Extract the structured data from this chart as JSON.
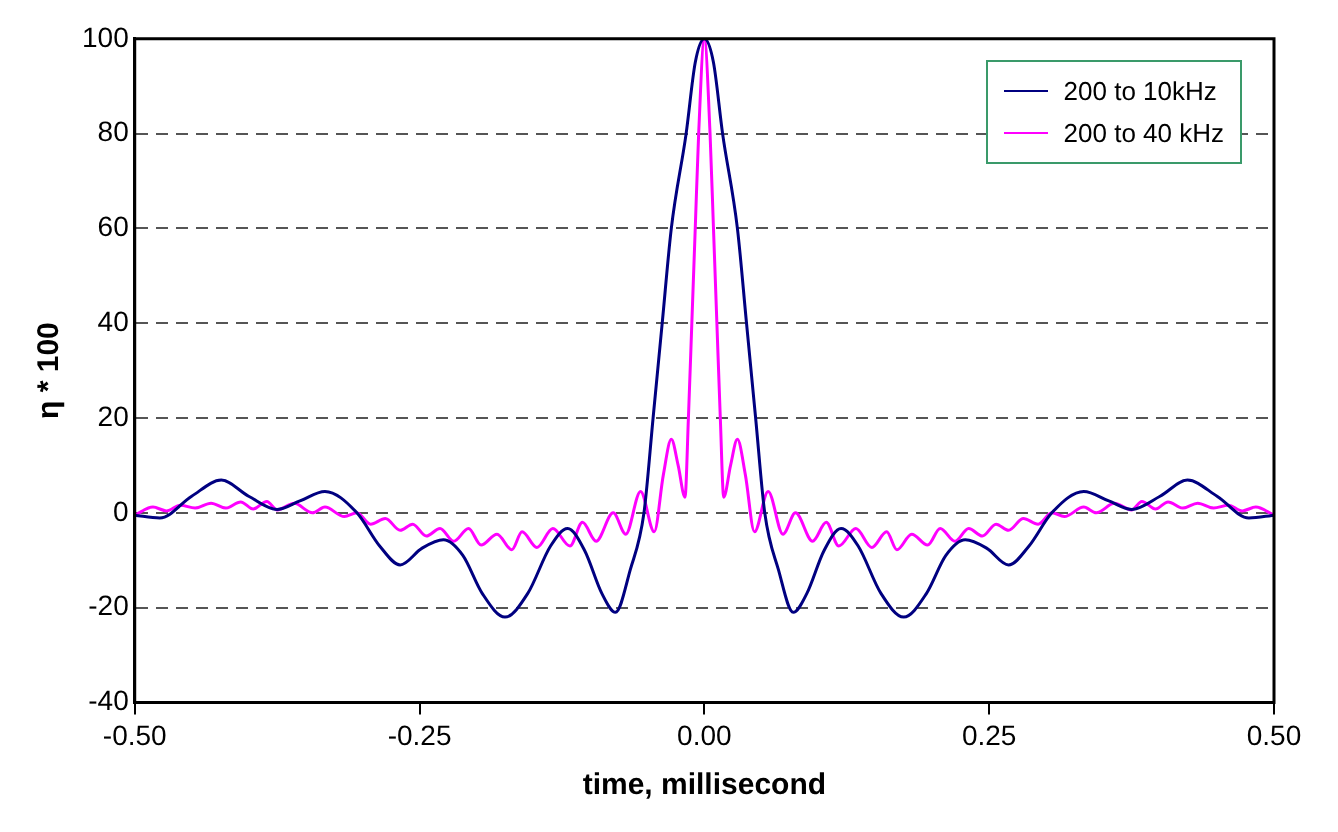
{
  "chart_data": {
    "type": "line",
    "xlabel": "time, millisecond",
    "ylabel": "η * 100",
    "xlim": [
      -0.5,
      0.5
    ],
    "xticks": [
      {
        "value": -0.5,
        "label": "-0.50"
      },
      {
        "value": -0.25,
        "label": "-0.25"
      },
      {
        "value": 0,
        "label": "0.00"
      },
      {
        "value": 0.25,
        "label": "0.25"
      },
      {
        "value": 0.5,
        "label": "0.50"
      }
    ],
    "ylim": [
      -40,
      100
    ],
    "yticks": [
      -40,
      -20,
      0,
      20,
      40,
      60,
      80,
      100
    ],
    "grid": "y",
    "legend": "top right",
    "marker": "none",
    "line_style": "solid",
    "series": [
      {
        "name": "200 to 10kHz",
        "color": "#000080",
        "x": [
          -0.5,
          -0.478,
          -0.45,
          -0.424,
          -0.4,
          -0.375,
          -0.355,
          -0.333,
          -0.305,
          -0.285,
          -0.267,
          -0.248,
          -0.229,
          -0.212,
          -0.195,
          -0.175,
          -0.155,
          -0.135,
          -0.12,
          -0.105,
          -0.09,
          -0.078,
          -0.065,
          -0.053,
          -0.045,
          -0.037,
          -0.029,
          -0.016,
          -0.008,
          0,
          0.008,
          0.016,
          0.029,
          0.037,
          0.045,
          0.053,
          0.065,
          0.078,
          0.09,
          0.105,
          0.12,
          0.135,
          0.155,
          0.175,
          0.195,
          0.212,
          0.229,
          0.248,
          0.267,
          0.285,
          0.305,
          0.333,
          0.355,
          0.375,
          0.4,
          0.424,
          0.45,
          0.478,
          0.5
        ],
        "values": [
          -0.5,
          -1.1,
          3.5,
          6.9,
          3.5,
          0.7,
          2.5,
          4.5,
          0,
          -7,
          -11,
          -7.5,
          -5.7,
          -9,
          -17,
          -22,
          -17,
          -7,
          -3.3,
          -8,
          -17,
          -21,
          -12,
          0,
          20,
          40,
          60,
          80,
          95,
          100,
          95,
          80,
          60,
          40,
          20,
          0,
          -12,
          -21,
          -17,
          -8,
          -3.3,
          -7,
          -17,
          -22,
          -17,
          -9,
          -5.7,
          -7.5,
          -11,
          -7,
          0,
          4.5,
          2.5,
          0.7,
          3.5,
          6.9,
          3.5,
          -1.1,
          -0.5
        ]
      },
      {
        "name": "200 to 40 kHz",
        "color": "#ff00ff",
        "x": [
          -0.5,
          -0.484,
          -0.472,
          -0.46,
          -0.447,
          -0.433,
          -0.42,
          -0.407,
          -0.396,
          -0.384,
          -0.375,
          -0.36,
          -0.344,
          -0.333,
          -0.316,
          -0.305,
          -0.293,
          -0.28,
          -0.267,
          -0.256,
          -0.244,
          -0.232,
          -0.22,
          -0.207,
          -0.196,
          -0.182,
          -0.169,
          -0.16,
          -0.147,
          -0.133,
          -0.118,
          -0.107,
          -0.095,
          -0.08,
          -0.069,
          -0.056,
          -0.044,
          -0.036,
          -0.029,
          -0.023,
          -0.017,
          -0.014,
          -0.011,
          -0.008,
          -0.005,
          0,
          0.005,
          0.008,
          0.011,
          0.014,
          0.017,
          0.023,
          0.029,
          0.036,
          0.044,
          0.056,
          0.069,
          0.08,
          0.095,
          0.107,
          0.118,
          0.133,
          0.147,
          0.16,
          0.169,
          0.182,
          0.196,
          0.207,
          0.22,
          0.232,
          0.244,
          0.256,
          0.267,
          0.28,
          0.293,
          0.305,
          0.316,
          0.333,
          0.344,
          0.36,
          0.375,
          0.384,
          0.396,
          0.407,
          0.42,
          0.433,
          0.447,
          0.46,
          0.472,
          0.484,
          0.5
        ],
        "values": [
          -0.5,
          1.2,
          0.4,
          1.6,
          1,
          2,
          1,
          2.3,
          0.8,
          2.4,
          0.6,
          2,
          0,
          1.2,
          -0.8,
          0,
          -2.4,
          -1.2,
          -3.7,
          -2.4,
          -4.9,
          -3.3,
          -6,
          -3.3,
          -6.8,
          -4.5,
          -7.8,
          -4,
          -7.3,
          -3.3,
          -7,
          -2,
          -6,
          0,
          -4.5,
          4.5,
          -4,
          8,
          15.5,
          10,
          3.3,
          20,
          40,
          60,
          80,
          100,
          80,
          60,
          40,
          20,
          3.3,
          10,
          15.5,
          8,
          -4,
          4.5,
          -4.5,
          0,
          -6,
          -2,
          -7,
          -3.3,
          -7.3,
          -4,
          -7.8,
          -4.5,
          -6.8,
          -3.3,
          -6,
          -3.3,
          -4.9,
          -2.4,
          -3.7,
          -1.2,
          -2.4,
          0,
          -0.8,
          1.2,
          0,
          2,
          0.6,
          2.4,
          0.8,
          2.3,
          1,
          2,
          1,
          1.6,
          0.4,
          1.2,
          -0.5
        ]
      }
    ]
  }
}
